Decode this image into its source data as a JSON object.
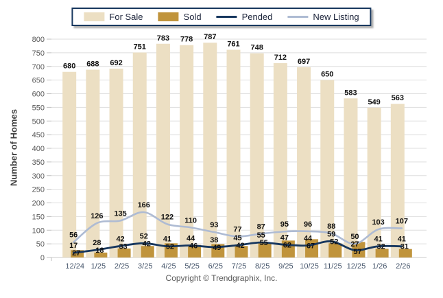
{
  "chart_data": {
    "type": "bar",
    "subtype": "grouped-bars-with-overlaid-lines",
    "title": "",
    "ylabel": "Number of Homes",
    "xlabel": "",
    "ylim": [
      0,
      800
    ],
    "ytick_step": 50,
    "grid": true,
    "legend_position": "top-center",
    "categories": [
      "12/24",
      "1/25",
      "2/25",
      "3/25",
      "4/25",
      "5/25",
      "6/25",
      "7/25",
      "8/25",
      "9/25",
      "10/25",
      "11/25",
      "12/25",
      "1/26",
      "2/26"
    ],
    "series": [
      {
        "name": "For Sale",
        "type": "bar",
        "color": "#ECDFC3",
        "values": [
          680,
          688,
          692,
          751,
          783,
          778,
          787,
          761,
          748,
          712,
          697,
          650,
          583,
          549,
          563
        ]
      },
      {
        "name": "Sold",
        "type": "bar",
        "color": "#C0943C",
        "values": [
          27,
          18,
          33,
          42,
          52,
          46,
          49,
          42,
          55,
          62,
          67,
          52,
          57,
          32,
          31
        ]
      },
      {
        "name": "Pended",
        "type": "line",
        "color": "#17375E",
        "values": [
          17,
          28,
          42,
          52,
          41,
          44,
          38,
          45,
          55,
          47,
          44,
          59,
          27,
          41,
          41
        ]
      },
      {
        "name": "New Listing",
        "type": "line",
        "color": "#AEBBD3",
        "values": [
          56,
          126,
          135,
          166,
          122,
          110,
          93,
          77,
          87,
          95,
          96,
          88,
          50,
          103,
          107
        ]
      }
    ],
    "colors": {
      "grid": "#DEDEDE",
      "baseline": "#C9C9C9",
      "tick": "#BFBFBF",
      "y_tick_text": "#595959",
      "x_tick_text": "#44546A",
      "value_label": "#111111"
    }
  },
  "legend": {
    "items": [
      {
        "label": "For Sale",
        "swatch": "box",
        "color": "#ECDFC3"
      },
      {
        "label": "Sold",
        "swatch": "box",
        "color": "#C0943C"
      },
      {
        "label": "Pended",
        "swatch": "line",
        "color": "#17375E"
      },
      {
        "label": "New Listing",
        "swatch": "line",
        "color": "#AEBBD3"
      }
    ]
  },
  "footer": {
    "copyright": "Copyright © Trendgraphix, Inc."
  }
}
